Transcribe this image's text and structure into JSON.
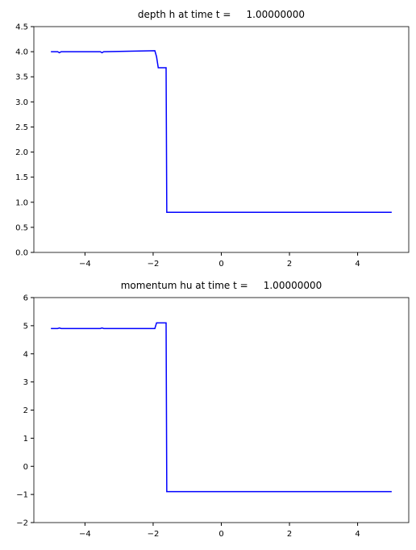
{
  "chart_data": [
    {
      "type": "line",
      "title": "depth h at time t =     1.00000000",
      "x": [
        -5,
        -4.8,
        -4.75,
        -4.7,
        -3.55,
        -3.5,
        -3.45,
        -1.95,
        -1.9,
        -1.85,
        -1.62,
        -1.6,
        5
      ],
      "series": [
        {
          "name": "h",
          "color": "#0000ff",
          "values": [
            4.0,
            4.0,
            3.98,
            4.0,
            4.0,
            3.98,
            4.0,
            4.02,
            3.9,
            3.68,
            3.68,
            0.8,
            0.8
          ]
        }
      ],
      "xlim": [
        -5.5,
        5.5
      ],
      "ylim": [
        0,
        4.5
      ],
      "xticks": [
        {
          "value": -4,
          "label": "−4"
        },
        {
          "value": -2,
          "label": "−2"
        },
        0,
        2,
        4
      ],
      "yticks": [
        {
          "value": 0,
          "label": "0.0"
        },
        0.5,
        {
          "value": 1,
          "label": "1.0"
        },
        1.5,
        {
          "value": 2,
          "label": "2.0"
        },
        2.5,
        {
          "value": 3,
          "label": "3.0"
        },
        3.5,
        {
          "value": 4,
          "label": "4.0"
        },
        4.5
      ]
    },
    {
      "type": "line",
      "title": "momentum hu at time t =     1.00000000",
      "x": [
        -5,
        -4.8,
        -4.75,
        -4.7,
        -3.55,
        -3.5,
        -3.45,
        -1.95,
        -1.9,
        -1.85,
        -1.62,
        -1.6,
        5
      ],
      "series": [
        {
          "name": "hu",
          "color": "#0000ff",
          "values": [
            4.9,
            4.9,
            4.92,
            4.9,
            4.9,
            4.92,
            4.9,
            4.9,
            5.1,
            5.1,
            5.1,
            -0.9,
            -0.9
          ]
        }
      ],
      "xlim": [
        -5.5,
        5.5
      ],
      "ylim": [
        -2,
        6
      ],
      "xticks": [
        {
          "value": -4,
          "label": "−4"
        },
        {
          "value": -2,
          "label": "−2"
        },
        0,
        2,
        4
      ],
      "yticks": [
        {
          "value": -2,
          "label": "−2"
        },
        {
          "value": -1,
          "label": "−1"
        },
        0,
        1,
        2,
        3,
        4,
        5,
        6
      ]
    }
  ]
}
